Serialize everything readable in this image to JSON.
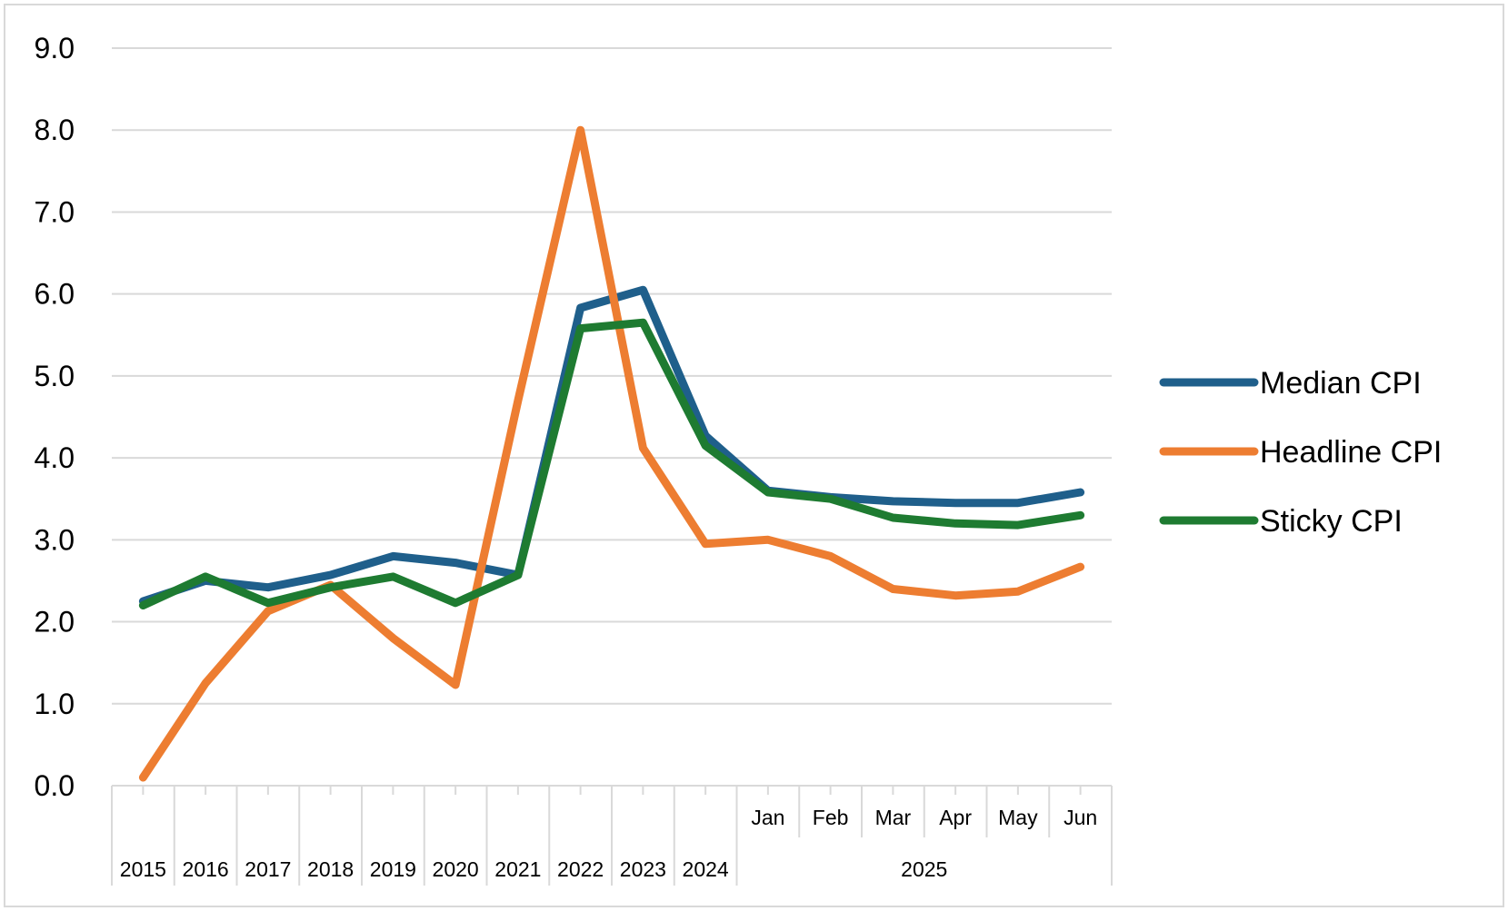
{
  "chart_data": {
    "type": "line",
    "title": "",
    "xlabel": "",
    "ylabel": "",
    "ylim": [
      0,
      9
    ],
    "y_ticks": [
      "0.0",
      "1.0",
      "2.0",
      "3.0",
      "4.0",
      "5.0",
      "6.0",
      "7.0",
      "8.0",
      "9.0"
    ],
    "grid": "horizontal",
    "legend_position": "right",
    "categories": [
      "2015",
      "2016",
      "2017",
      "2018",
      "2019",
      "2020",
      "2021",
      "2022",
      "2023",
      "2024",
      "Jan",
      "Feb",
      "Mar",
      "Apr",
      "May",
      "Jun"
    ],
    "x_group_labels": [
      {
        "label": "2025",
        "categories": [
          "Jan",
          "Feb",
          "Mar",
          "Apr",
          "May",
          "Jun"
        ]
      }
    ],
    "series": [
      {
        "name": "Median CPI",
        "color": "#1f5f8b",
        "values": [
          2.25,
          2.5,
          2.42,
          2.57,
          2.8,
          2.72,
          2.57,
          5.83,
          6.05,
          4.27,
          3.6,
          3.52,
          3.47,
          3.45,
          3.45,
          3.58
        ]
      },
      {
        "name": "Headline CPI",
        "color": "#ed7d31",
        "values": [
          0.1,
          1.25,
          2.13,
          2.45,
          1.8,
          1.23,
          4.7,
          8.0,
          4.12,
          2.95,
          3.0,
          2.8,
          2.4,
          2.32,
          2.37,
          2.67
        ]
      },
      {
        "name": "Sticky CPI",
        "color": "#1e7b31",
        "values": [
          2.2,
          2.55,
          2.23,
          2.42,
          2.55,
          2.23,
          2.57,
          5.58,
          5.65,
          4.15,
          3.58,
          3.5,
          3.27,
          3.2,
          3.18,
          3.3
        ]
      }
    ]
  }
}
